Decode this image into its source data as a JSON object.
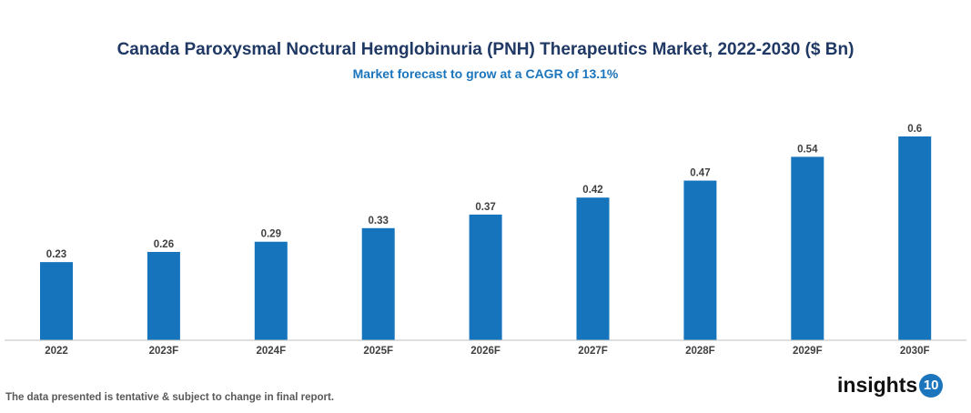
{
  "chart_data": {
    "type": "bar",
    "title": "Canada Paroxysmal Noctural Hemglobinuria (PNH) Therapeutics Market, 2022-2030 ($ Bn)",
    "subtitle": "Market forecast to grow at a CAGR of 13.1%",
    "categories": [
      "2022",
      "2023F",
      "2024F",
      "2025F",
      "2026F",
      "2027F",
      "2028F",
      "2029F",
      "2030F"
    ],
    "values": [
      0.23,
      0.26,
      0.29,
      0.33,
      0.37,
      0.42,
      0.47,
      0.54,
      0.6
    ],
    "xlabel": "",
    "ylabel": "",
    "ylim": [
      0,
      0.6
    ],
    "grid": false,
    "bar_color": "#1674bd"
  },
  "footer": "The data presented is tentative & subject to change in final report.",
  "logo": {
    "text": "insights",
    "badge": "10"
  }
}
